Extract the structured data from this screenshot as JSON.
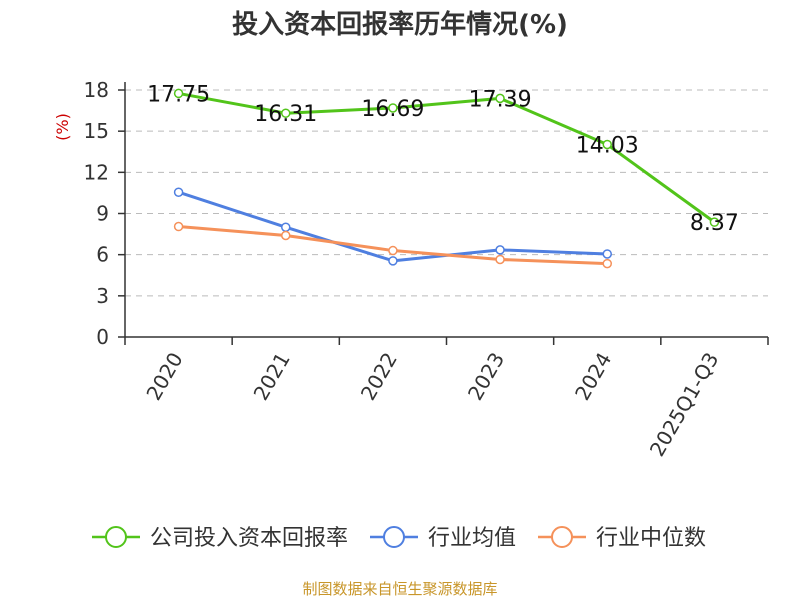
{
  "page": {
    "title": "投入资本回报率历年情况(%)",
    "source": "制图数据来自恒生聚源数据库"
  },
  "chart_data": {
    "type": "line",
    "title": "投入资本回报率历年情况(%)",
    "ylabel": "(%)",
    "xlabel": "",
    "categories": [
      "2020",
      "2021",
      "2022",
      "2023",
      "2024",
      "2025Q1-Q3"
    ],
    "ylim": [
      0,
      18
    ],
    "yticks": [
      0,
      3,
      6,
      9,
      12,
      15,
      18
    ],
    "grid": true,
    "legend_position": "bottom",
    "series": [
      {
        "name": "公司投入资本回报率",
        "color": "#52c41a",
        "values": [
          17.75,
          16.31,
          16.69,
          17.39,
          14.03,
          8.37
        ],
        "labels": [
          "17.75",
          "16.31",
          "16.69",
          "17.39",
          "14.03",
          "8.37"
        ]
      },
      {
        "name": "行业均值",
        "color": "#4f7fe0",
        "values": [
          10.55,
          8.0,
          5.55,
          6.35,
          6.05,
          null
        ]
      },
      {
        "name": "行业中位数",
        "color": "#f5915a",
        "values": [
          8.05,
          7.4,
          6.3,
          5.65,
          5.35,
          null
        ]
      }
    ]
  }
}
